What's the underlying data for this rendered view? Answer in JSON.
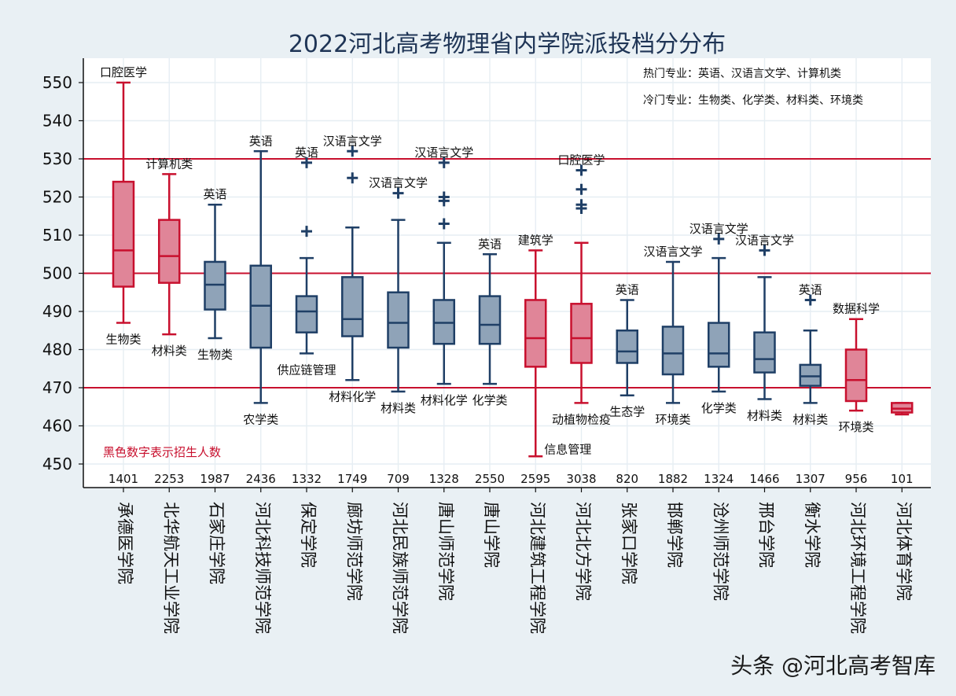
{
  "chart_data": {
    "type": "boxplot",
    "title": "2022河北高考物理省内学院派投档分分布",
    "y_ticks": [
      450,
      460,
      470,
      480,
      490,
      500,
      510,
      520,
      530,
      540,
      550
    ],
    "ylim": [
      446,
      556
    ],
    "reference_lines": [
      470,
      500,
      530
    ],
    "notes": [
      "热门专业：英语、汉语言文学、计算机类",
      "冷门专业：生物类、化学类、材料类、环境类"
    ],
    "legend_text": "黑色数字表示招生人数",
    "watermark": "头条 @河北高考智库",
    "colors": {
      "hot": "#c8102e",
      "hot_fill": "#e08598",
      "cold": "#1f3f66",
      "cold_fill": "#8fa3b8",
      "ref_line": "#c8102e"
    },
    "schools": [
      {
        "name": "承德医学院",
        "count": "1401",
        "hot": true,
        "min": 487,
        "q1": 496.5,
        "median": 506,
        "q3": 524,
        "max": 550,
        "outliers": [],
        "top_label": "口腔医学",
        "bottom_label": "生物类"
      },
      {
        "name": "北华航天工业学院",
        "count": "2253",
        "hot": true,
        "min": 484,
        "q1": 497.5,
        "median": 504.5,
        "q3": 514,
        "max": 526,
        "outliers": [],
        "top_label": "计算机类",
        "bottom_label": "材料类"
      },
      {
        "name": "石家庄学院",
        "count": "1987",
        "hot": false,
        "min": 483,
        "q1": 490.5,
        "median": 497,
        "q3": 503,
        "max": 518,
        "outliers": [],
        "top_label": "英语",
        "bottom_label": "生物类"
      },
      {
        "name": "河北科技师范学院",
        "count": "2436",
        "hot": false,
        "min": 466,
        "q1": 480.5,
        "median": 491.5,
        "q3": 502,
        "max": 532,
        "outliers": [],
        "top_label": "英语",
        "bottom_label": "农学类"
      },
      {
        "name": "保定学院",
        "count": "1332",
        "hot": false,
        "min": 479,
        "q1": 484.5,
        "median": 490,
        "q3": 494,
        "max": 504,
        "outliers": [
          511,
          529
        ],
        "top_label": "英语",
        "bottom_label": "供应链管理"
      },
      {
        "name": "廊坊师范学院",
        "count": "1749",
        "hot": false,
        "min": 472,
        "q1": 483.5,
        "median": 488,
        "q3": 499,
        "max": 512,
        "outliers": [
          525,
          532
        ],
        "top_label": "汉语言文学",
        "bottom_label": "材料化学"
      },
      {
        "name": "河北民族师范学院",
        "count": "709",
        "hot": false,
        "min": 469,
        "q1": 480.5,
        "median": 487,
        "q3": 495,
        "max": 514,
        "outliers": [
          521
        ],
        "top_label": "汉语言文学",
        "bottom_label": "材料类"
      },
      {
        "name": "唐山师范学院",
        "count": "1328",
        "hot": false,
        "min": 471,
        "q1": 481.5,
        "median": 487,
        "q3": 493,
        "max": 508,
        "outliers": [
          513,
          519,
          520,
          529
        ],
        "top_label": "汉语言文学",
        "bottom_label": "材料化学"
      },
      {
        "name": "唐山学院",
        "count": "2550",
        "hot": false,
        "min": 471,
        "q1": 481.5,
        "median": 486.5,
        "q3": 494,
        "max": 505,
        "outliers": [],
        "top_label": "英语",
        "bottom_label": "化学类"
      },
      {
        "name": "河北建筑工程学院",
        "count": "2595",
        "hot": true,
        "min": 452,
        "q1": 475.5,
        "median": 483,
        "q3": 493,
        "max": 506,
        "outliers": [],
        "top_label": "建筑学",
        "bottom_label": "信息管理"
      },
      {
        "name": "河北北方学院",
        "count": "3038",
        "hot": true,
        "min": 466,
        "q1": 476.5,
        "median": 483,
        "q3": 492,
        "max": 508,
        "outliers": [
          517,
          518,
          522,
          527
        ],
        "top_label": "口腔医学",
        "bottom_label": "动植物检疫"
      },
      {
        "name": "张家口学院",
        "count": "820",
        "hot": false,
        "min": 468,
        "q1": 476.5,
        "median": 479.5,
        "q3": 485,
        "max": 493,
        "outliers": [],
        "top_label": "英语",
        "bottom_label": "生态学"
      },
      {
        "name": "邯郸学院",
        "count": "1882",
        "hot": false,
        "min": 466,
        "q1": 473.5,
        "median": 479,
        "q3": 486,
        "max": 503,
        "outliers": [],
        "top_label": "汉语言文学",
        "bottom_label": "环境类"
      },
      {
        "name": "沧州师范学院",
        "count": "1324",
        "hot": false,
        "min": 469,
        "q1": 475.5,
        "median": 479,
        "q3": 487,
        "max": 504,
        "outliers": [
          509
        ],
        "top_label": "汉语言文学",
        "bottom_label": "化学类"
      },
      {
        "name": "邢台学院",
        "count": "1466",
        "hot": false,
        "min": 467,
        "q1": 474,
        "median": 477.5,
        "q3": 484.5,
        "max": 499,
        "outliers": [
          506
        ],
        "top_label": "汉语言文学",
        "bottom_label": "材料类"
      },
      {
        "name": "衡水学院",
        "count": "1307",
        "hot": false,
        "min": 466,
        "q1": 470.5,
        "median": 473,
        "q3": 476,
        "max": 485,
        "outliers": [
          493
        ],
        "top_label": "英语",
        "bottom_label": "材料类"
      },
      {
        "name": "河北环境工程学院",
        "count": "956",
        "hot": true,
        "min": 464,
        "q1": 466.5,
        "median": 472,
        "q3": 480,
        "max": 488,
        "outliers": [],
        "top_label": "数据科学",
        "bottom_label": "环境类"
      },
      {
        "name": "河北体育学院",
        "count": "101",
        "hot": true,
        "min": 463,
        "q1": 463.5,
        "median": 464.5,
        "q3": 466,
        "max": 466,
        "outliers": [],
        "top_label": "",
        "bottom_label": ""
      }
    ]
  }
}
